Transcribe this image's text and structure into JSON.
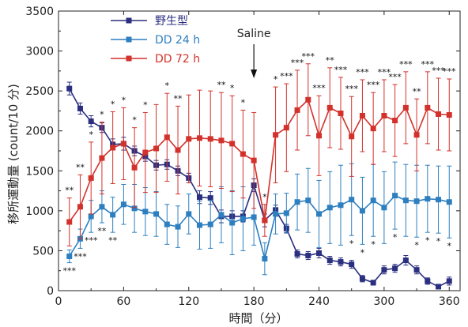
{
  "chart_data": {
    "type": "line",
    "xlabel": "時間（分）",
    "ylabel": "移所運動量 (count/10 分)",
    "xlim": [
      0,
      370
    ],
    "ylim": [
      0,
      3500
    ],
    "xticks": [
      0,
      60,
      120,
      180,
      240,
      300,
      360
    ],
    "yticks": [
      0,
      500,
      1000,
      1500,
      2000,
      2500,
      3000,
      3500
    ],
    "legend_position": "top-left",
    "annotation": {
      "text": "Saline",
      "x": 180
    },
    "x": [
      10,
      20,
      30,
      40,
      50,
      60,
      70,
      80,
      90,
      100,
      110,
      120,
      130,
      140,
      150,
      160,
      170,
      180,
      190,
      200,
      210,
      220,
      230,
      240,
      250,
      260,
      270,
      280,
      290,
      300,
      310,
      320,
      330,
      340,
      350,
      360
    ],
    "series": [
      {
        "name": "野生型",
        "color": "#2b2f7f",
        "values": [
          2530,
          2280,
          2120,
          2040,
          1830,
          1840,
          1750,
          1680,
          1570,
          1580,
          1500,
          1410,
          1170,
          1160,
          930,
          930,
          930,
          1320,
          880,
          1010,
          780,
          460,
          440,
          470,
          380,
          360,
          330,
          150,
          100,
          260,
          280,
          380,
          260,
          120,
          50,
          120
        ],
        "errors": [
          80,
          70,
          70,
          60,
          70,
          80,
          60,
          60,
          60,
          60,
          60,
          60,
          80,
          80,
          80,
          70,
          70,
          80,
          80,
          60,
          50,
          50,
          50,
          60,
          50,
          50,
          50,
          40,
          30,
          50,
          50,
          60,
          50,
          40,
          20,
          50
        ]
      },
      {
        "name": "DD 24 h",
        "color": "#2d7fbf",
        "values": [
          430,
          650,
          930,
          1050,
          950,
          1080,
          1030,
          990,
          960,
          830,
          800,
          960,
          820,
          830,
          950,
          850,
          900,
          920,
          400,
          960,
          970,
          1110,
          1130,
          960,
          1040,
          1070,
          1140,
          1000,
          1130,
          1040,
          1190,
          1130,
          1120,
          1150,
          1140,
          1110
        ],
        "errors": [
          80,
          120,
          200,
          200,
          220,
          250,
          300,
          300,
          280,
          250,
          260,
          250,
          300,
          300,
          350,
          400,
          400,
          350,
          200,
          250,
          250,
          350,
          400,
          420,
          450,
          500,
          450,
          420,
          450,
          450,
          420,
          450,
          450,
          420,
          420,
          450
        ]
      },
      {
        "name": "DD 72 h",
        "color": "#d3312b",
        "values": [
          860,
          1050,
          1410,
          1660,
          1790,
          1840,
          1540,
          1730,
          1780,
          1920,
          1760,
          1900,
          1910,
          1900,
          1880,
          1840,
          1710,
          1630,
          880,
          1950,
          2040,
          2260,
          2390,
          1940,
          2290,
          2220,
          1930,
          2190,
          2030,
          2190,
          2130,
          2290,
          1950,
          2290,
          2210,
          2200
        ],
        "errors": [
          300,
          400,
          450,
          450,
          450,
          450,
          500,
          500,
          550,
          550,
          550,
          550,
          600,
          600,
          600,
          600,
          550,
          600,
          200,
          600,
          550,
          500,
          450,
          500,
          500,
          450,
          500,
          450,
          450,
          450,
          450,
          450,
          450,
          450,
          450,
          450
        ]
      }
    ],
    "significance_markers": [
      {
        "x": 10,
        "labels": [
          "**",
          "***"
        ]
      },
      {
        "x": 20,
        "labels": [
          "**",
          "***"
        ]
      },
      {
        "x": 30,
        "labels": [
          "*",
          "***"
        ]
      },
      {
        "x": 40,
        "labels": [
          "*",
          "**"
        ]
      },
      {
        "x": 50,
        "labels": [
          "*",
          "**"
        ]
      },
      {
        "x": 60,
        "labels": [
          "*"
        ]
      },
      {
        "x": 70,
        "labels": [
          "*"
        ]
      },
      {
        "x": 80,
        "labels": [
          "*"
        ]
      },
      {
        "x": 100,
        "labels": [
          "*"
        ]
      },
      {
        "x": 110,
        "labels": [
          "**"
        ]
      },
      {
        "x": 150,
        "labels": [
          "**"
        ]
      },
      {
        "x": 160,
        "labels": [
          "*"
        ]
      },
      {
        "x": 170,
        "labels": [
          "*"
        ]
      },
      {
        "x": 190,
        "labels": [
          "*"
        ]
      },
      {
        "x": 200,
        "labels": [
          "*"
        ]
      },
      {
        "x": 210,
        "labels": [
          "***"
        ]
      },
      {
        "x": 220,
        "labels": [
          "***"
        ]
      },
      {
        "x": 230,
        "labels": [
          "***"
        ]
      },
      {
        "x": 240,
        "labels": [
          "***"
        ]
      },
      {
        "x": 250,
        "labels": [
          "**"
        ]
      },
      {
        "x": 260,
        "labels": [
          "***"
        ]
      },
      {
        "x": 270,
        "labels": [
          "***",
          "*"
        ]
      },
      {
        "x": 280,
        "labels": [
          "***",
          "*"
        ]
      },
      {
        "x": 290,
        "labels": [
          "***",
          "*"
        ]
      },
      {
        "x": 300,
        "labels": [
          "***"
        ]
      },
      {
        "x": 310,
        "labels": [
          "***",
          "*"
        ]
      },
      {
        "x": 320,
        "labels": [
          "***"
        ]
      },
      {
        "x": 330,
        "labels": [
          "**",
          "*"
        ]
      },
      {
        "x": 340,
        "labels": [
          "***",
          "*"
        ]
      },
      {
        "x": 350,
        "labels": [
          "***",
          "*"
        ]
      },
      {
        "x": 360,
        "labels": [
          "***",
          "*"
        ]
      }
    ]
  }
}
